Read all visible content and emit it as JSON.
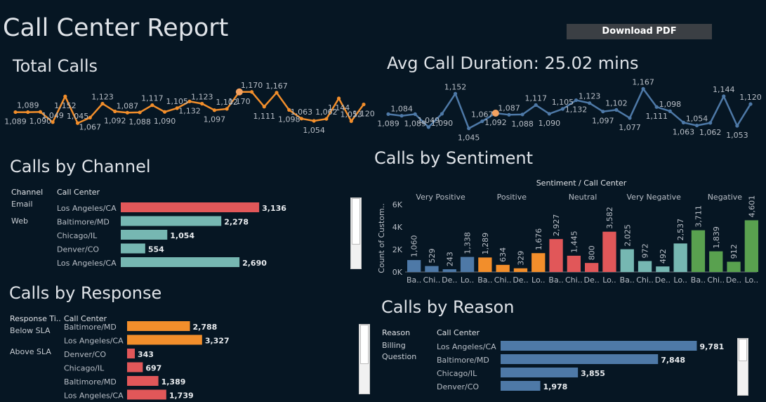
{
  "header": {
    "title": "Call Center Report",
    "download_label": "Download PDF"
  },
  "total_calls": {
    "title": "Total Calls",
    "chart_data": {
      "type": "line",
      "color": "#f28e2b",
      "values": [
        1089,
        1089,
        1090,
        1049,
        1152,
        1045,
        1067,
        1123,
        1092,
        1087,
        1088,
        1117,
        1090,
        1105,
        1132,
        1123,
        1097,
        1102,
        1170,
        1170,
        1111,
        1167,
        1098,
        1063,
        1054,
        1062,
        1144,
        1053,
        1120
      ],
      "labels": [
        "1,089",
        "1,089",
        "1,090",
        "1,049",
        "1,152",
        "1,045",
        "1,067",
        "1,123",
        "1,092",
        "1,087",
        "1,088",
        "1,117",
        "1,090",
        "1,105",
        "1,132",
        "1,123",
        "1,097",
        "1,102",
        "1,170",
        "1,170",
        "1,111",
        "1,167",
        "1,098",
        "1,063",
        "1,054",
        "1,062",
        "1,144",
        "1,053",
        "1,120"
      ],
      "highlight_index": 18
    }
  },
  "avg_duration": {
    "title": "Avg Call Duration: 25.02 mins",
    "chart_data": {
      "type": "line",
      "color": "#4e79a7",
      "values": [
        1089,
        1084,
        1089,
        1049,
        1090,
        1152,
        1045,
        1067,
        1092,
        1087,
        1088,
        1117,
        1090,
        1105,
        1132,
        1123,
        1097,
        1102,
        1077,
        1167,
        1111,
        1098,
        1063,
        1054,
        1062,
        1144,
        1053,
        1120
      ],
      "labels": [
        "1,089",
        "1,084",
        "1,089",
        "1,049",
        "1,090",
        "1,152",
        "1,045",
        "1,067",
        "1,092",
        "1,087",
        "1,088",
        "1,117",
        "1,090",
        "1,105",
        "1,132",
        "1,123",
        "1,097",
        "1,102",
        "1,077",
        "1,167",
        "1,111",
        "1,098",
        "1,063",
        "1,054",
        "1,062",
        "1,144",
        "1,053",
        "1,120"
      ],
      "highlight_index": 8
    }
  },
  "by_channel": {
    "title": "Calls by Channel",
    "headers": {
      "channel": "Channel",
      "center": "Call Center"
    },
    "channels": [
      "Email",
      "Web"
    ],
    "chart_data": {
      "type": "bar",
      "categories": [
        "Los Angeles/CA",
        "Baltimore/MD",
        "Chicago/IL",
        "Denver/CO",
        "Los Angeles/CA"
      ],
      "values": [
        3136,
        2278,
        1054,
        554,
        2690
      ],
      "labels": [
        "3,136",
        "2,278",
        "1,054",
        "554",
        "2,690"
      ],
      "colors": [
        "#e15759",
        "#76b7b2",
        "#76b7b2",
        "#76b7b2",
        "#76b7b2"
      ],
      "xmax": 3500
    }
  },
  "by_sentiment": {
    "title": "Calls by Sentiment",
    "chart_title": "Sentiment / Call Center",
    "ylabel": "Count of Custom..",
    "yticks": [
      "6K",
      "4K",
      "2K",
      "0K"
    ],
    "groups": [
      "Very Positive",
      "Positive",
      "Neutral",
      "Very Negative",
      "Negative"
    ],
    "chart_data": {
      "type": "bar",
      "categories": [
        "Ba..",
        "Chi..",
        "De..",
        "Lo..",
        "Ba..",
        "Chi..",
        "De..",
        "Lo..",
        "Ba..",
        "Chi..",
        "De..",
        "Lo..",
        "Ba..",
        "Chi..",
        "De..",
        "Lo..",
        "Ba..",
        "Chi..",
        "De..",
        "Lo.."
      ],
      "values": [
        1060,
        529,
        243,
        1338,
        1289,
        634,
        329,
        1676,
        2927,
        1445,
        800,
        3582,
        2025,
        972,
        492,
        2537,
        3711,
        1839,
        912,
        4601
      ],
      "labels": [
        "1,060",
        "529",
        "243",
        "1,338",
        "1,289",
        "634",
        "329",
        "1,676",
        "2,927",
        "1,445",
        "800",
        "3,582",
        "2,025",
        "972",
        "492",
        "2,537",
        "3,711",
        "1,839",
        "912",
        "4,601"
      ],
      "colors": [
        "#4e79a7",
        "#f28e2b",
        "#e15759",
        "#76b7b2",
        "#59a14f"
      ],
      "ymax": 6000
    }
  },
  "by_response": {
    "title": "Calls by Response",
    "headers": {
      "response": "Response Ti..",
      "center": "Call Center"
    },
    "groups": [
      "Below SLA",
      "Above SLA"
    ],
    "chart_data": {
      "type": "bar",
      "categories": [
        "Baltimore/MD",
        "Los Angeles/CA",
        "Denver/CO",
        "Chicago/IL",
        "Baltimore/MD",
        "Los Angeles/CA"
      ],
      "values": [
        2788,
        3327,
        343,
        697,
        1389,
        1739
      ],
      "labels": [
        "2,788",
        "3,327",
        "343",
        "697",
        "1,389",
        "1,739"
      ],
      "colors": [
        "#f28e2b",
        "#f28e2b",
        "#e15759",
        "#e15759",
        "#e15759",
        "#e15759"
      ],
      "xmax": 3800
    }
  },
  "by_reason": {
    "title": "Calls by Reason",
    "headers": {
      "reason": "Reason",
      "center": "Call Center"
    },
    "reasons": [
      "Billing",
      "Question"
    ],
    "chart_data": {
      "type": "bar",
      "categories": [
        "Los Angeles/CA",
        "Baltimore/MD",
        "Chicago/IL",
        "Denver/CO"
      ],
      "values": [
        9781,
        7848,
        3855,
        1978
      ],
      "labels": [
        "9,781",
        "7,848",
        "3,855",
        "1,978"
      ],
      "colors": [
        "#4e79a7",
        "#4e79a7",
        "#4e79a7",
        "#4e79a7"
      ],
      "xmax": 10500
    }
  }
}
